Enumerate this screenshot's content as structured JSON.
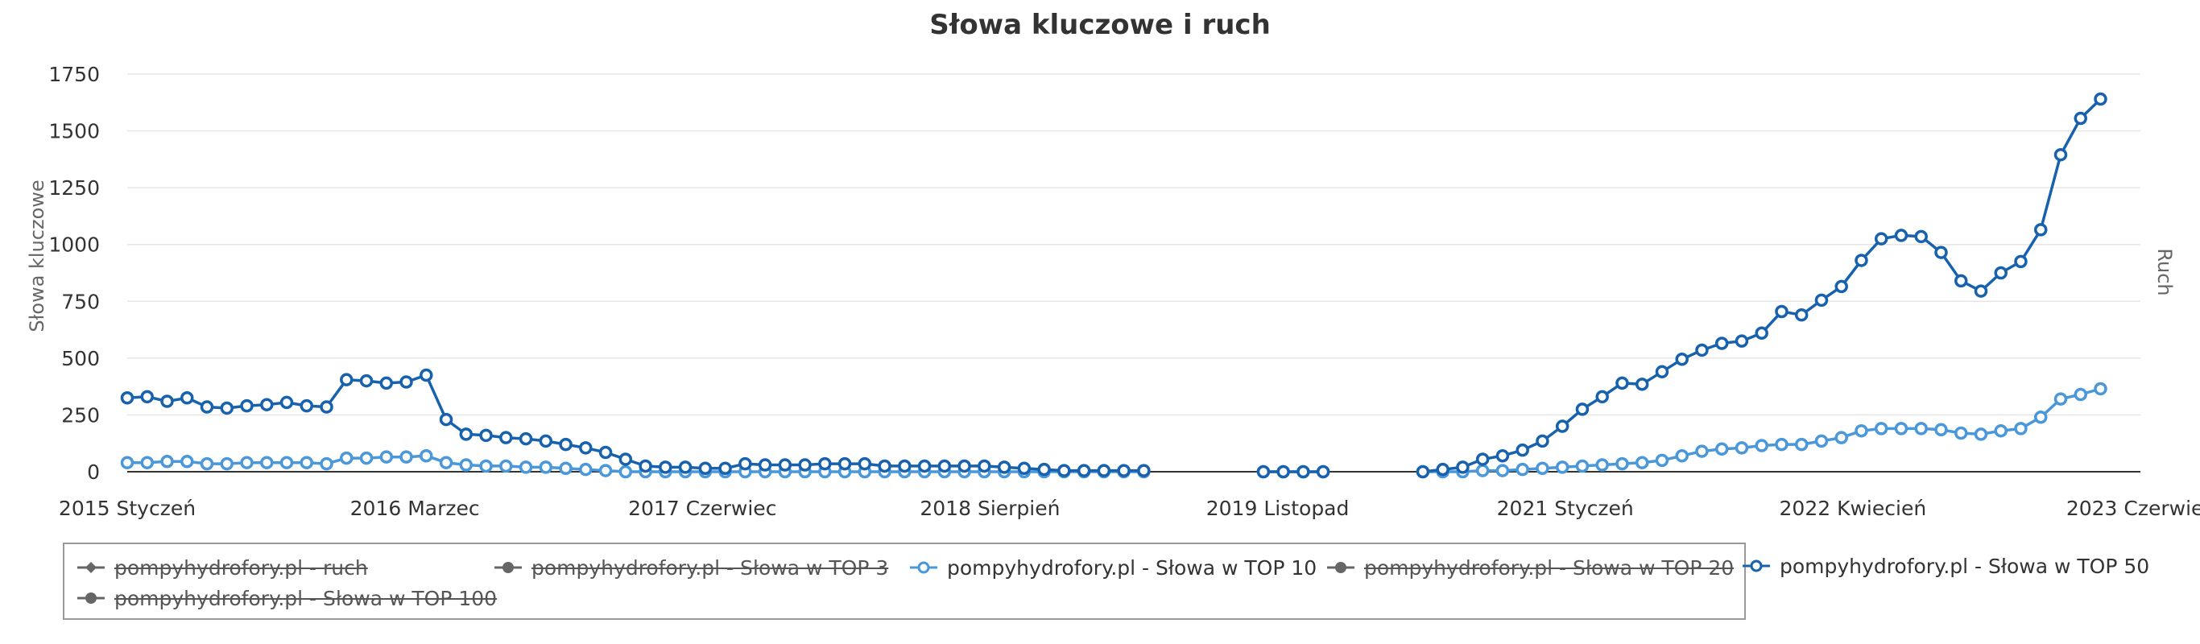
{
  "chart_data": {
    "type": "line",
    "title": "Słowa kluczowe i ruch",
    "ylabel": "Słowa kluczowe",
    "y2label": "Ruch",
    "ylim": [
      0,
      1750
    ],
    "yticks": [
      0,
      250,
      500,
      750,
      1000,
      1250,
      1500,
      1750
    ],
    "x_labels": [
      "2015 Styczeń",
      "2016 Marzec",
      "2017 Czerwiec",
      "2018 Sierpień",
      "2019 Listopad",
      "2021 Styczeń",
      "2022 Kwiecień",
      "2023 Czerwiec"
    ],
    "x_start": "2015-01",
    "x_end": "2023-06",
    "grid": true,
    "legend_position": "bottom",
    "series": [
      {
        "name": "pompyhydrofory.pl - Słowa w TOP 10",
        "color": "#4a97d9",
        "visible": true,
        "points": [
          [
            "2015-01",
            40
          ],
          [
            "2015-02",
            40
          ],
          [
            "2015-03",
            45
          ],
          [
            "2015-04",
            45
          ],
          [
            "2015-05",
            35
          ],
          [
            "2015-06",
            35
          ],
          [
            "2015-07",
            40
          ],
          [
            "2015-08",
            40
          ],
          [
            "2015-09",
            40
          ],
          [
            "2015-10",
            40
          ],
          [
            "2015-11",
            35
          ],
          [
            "2015-12",
            60
          ],
          [
            "2016-01",
            60
          ],
          [
            "2016-02",
            65
          ],
          [
            "2016-03",
            65
          ],
          [
            "2016-04",
            70
          ],
          [
            "2016-05",
            40
          ],
          [
            "2016-06",
            30
          ],
          [
            "2016-07",
            25
          ],
          [
            "2016-08",
            25
          ],
          [
            "2016-09",
            20
          ],
          [
            "2016-10",
            20
          ],
          [
            "2016-11",
            15
          ],
          [
            "2016-12",
            10
          ],
          [
            "2017-01",
            5
          ],
          [
            "2017-02",
            0
          ],
          [
            "2017-03",
            0
          ],
          [
            "2017-04",
            0
          ],
          [
            "2017-05",
            0
          ],
          [
            "2017-06",
            0
          ],
          [
            "2017-07",
            0
          ],
          [
            "2017-08",
            0
          ],
          [
            "2017-09",
            0
          ],
          [
            "2017-10",
            0
          ],
          [
            "2017-11",
            0
          ],
          [
            "2017-12",
            0
          ],
          [
            "2018-01",
            0
          ],
          [
            "2018-02",
            0
          ],
          [
            "2018-03",
            0
          ],
          [
            "2018-04",
            0
          ],
          [
            "2018-05",
            0
          ],
          [
            "2018-06",
            0
          ],
          [
            "2018-07",
            0
          ],
          [
            "2018-08",
            0
          ],
          [
            "2018-09",
            0
          ],
          [
            "2018-10",
            0
          ],
          [
            "2018-11",
            0
          ],
          [
            "2018-12",
            0
          ],
          [
            "2019-01",
            0
          ],
          [
            "2019-02",
            0
          ],
          [
            "2019-03",
            0
          ],
          [
            "2019-04",
            0
          ],
          [
            "2019-10",
            0
          ],
          [
            "2019-11",
            0
          ],
          [
            "2019-12",
            0
          ],
          [
            "2020-01",
            0
          ],
          [
            "2020-06",
            0
          ],
          [
            "2020-07",
            0
          ],
          [
            "2020-08",
            0
          ],
          [
            "2020-09",
            5
          ],
          [
            "2020-10",
            5
          ],
          [
            "2020-11",
            10
          ],
          [
            "2020-12",
            15
          ],
          [
            "2021-01",
            20
          ],
          [
            "2021-02",
            25
          ],
          [
            "2021-03",
            30
          ],
          [
            "2021-04",
            35
          ],
          [
            "2021-05",
            40
          ],
          [
            "2021-06",
            50
          ],
          [
            "2021-07",
            70
          ],
          [
            "2021-08",
            90
          ],
          [
            "2021-09",
            100
          ],
          [
            "2021-10",
            105
          ],
          [
            "2021-11",
            115
          ],
          [
            "2021-12",
            120
          ],
          [
            "2022-01",
            120
          ],
          [
            "2022-02",
            135
          ],
          [
            "2022-03",
            150
          ],
          [
            "2022-04",
            180
          ],
          [
            "2022-05",
            190
          ],
          [
            "2022-06",
            190
          ],
          [
            "2022-07",
            190
          ],
          [
            "2022-08",
            185
          ],
          [
            "2022-09",
            170
          ],
          [
            "2022-10",
            165
          ],
          [
            "2022-11",
            180
          ],
          [
            "2022-12",
            190
          ],
          [
            "2023-01",
            240
          ],
          [
            "2023-02",
            320
          ],
          [
            "2023-03",
            340
          ],
          [
            "2023-04",
            365
          ]
        ]
      },
      {
        "name": "pompyhydrofory.pl - Słowa w TOP 50",
        "color": "#1862ad",
        "visible": true,
        "points": [
          [
            "2015-01",
            325
          ],
          [
            "2015-02",
            330
          ],
          [
            "2015-03",
            310
          ],
          [
            "2015-04",
            325
          ],
          [
            "2015-05",
            285
          ],
          [
            "2015-06",
            280
          ],
          [
            "2015-07",
            290
          ],
          [
            "2015-08",
            295
          ],
          [
            "2015-09",
            305
          ],
          [
            "2015-10",
            290
          ],
          [
            "2015-11",
            285
          ],
          [
            "2015-12",
            405
          ],
          [
            "2016-01",
            400
          ],
          [
            "2016-02",
            390
          ],
          [
            "2016-03",
            395
          ],
          [
            "2016-04",
            425
          ],
          [
            "2016-05",
            230
          ],
          [
            "2016-06",
            165
          ],
          [
            "2016-07",
            160
          ],
          [
            "2016-08",
            150
          ],
          [
            "2016-09",
            145
          ],
          [
            "2016-10",
            135
          ],
          [
            "2016-11",
            120
          ],
          [
            "2016-12",
            105
          ],
          [
            "2017-01",
            85
          ],
          [
            "2017-02",
            55
          ],
          [
            "2017-03",
            25
          ],
          [
            "2017-04",
            20
          ],
          [
            "2017-05",
            20
          ],
          [
            "2017-06",
            15
          ],
          [
            "2017-07",
            15
          ],
          [
            "2017-08",
            35
          ],
          [
            "2017-09",
            30
          ],
          [
            "2017-10",
            30
          ],
          [
            "2017-11",
            30
          ],
          [
            "2017-12",
            35
          ],
          [
            "2018-01",
            35
          ],
          [
            "2018-02",
            35
          ],
          [
            "2018-03",
            25
          ],
          [
            "2018-04",
            25
          ],
          [
            "2018-05",
            25
          ],
          [
            "2018-06",
            25
          ],
          [
            "2018-07",
            25
          ],
          [
            "2018-08",
            25
          ],
          [
            "2018-09",
            20
          ],
          [
            "2018-10",
            15
          ],
          [
            "2018-11",
            10
          ],
          [
            "2018-12",
            5
          ],
          [
            "2019-01",
            5
          ],
          [
            "2019-02",
            5
          ],
          [
            "2019-03",
            5
          ],
          [
            "2019-04",
            5
          ],
          [
            "2019-10",
            0
          ],
          [
            "2019-11",
            0
          ],
          [
            "2019-12",
            0
          ],
          [
            "2020-01",
            0
          ],
          [
            "2020-06",
            0
          ],
          [
            "2020-07",
            10
          ],
          [
            "2020-08",
            20
          ],
          [
            "2020-09",
            55
          ],
          [
            "2020-10",
            70
          ],
          [
            "2020-11",
            95
          ],
          [
            "2020-12",
            135
          ],
          [
            "2021-01",
            200
          ],
          [
            "2021-02",
            275
          ],
          [
            "2021-03",
            330
          ],
          [
            "2021-04",
            390
          ],
          [
            "2021-05",
            385
          ],
          [
            "2021-06",
            440
          ],
          [
            "2021-07",
            495
          ],
          [
            "2021-08",
            535
          ],
          [
            "2021-09",
            565
          ],
          [
            "2021-10",
            575
          ],
          [
            "2021-11",
            610
          ],
          [
            "2021-12",
            705
          ],
          [
            "2022-01",
            690
          ],
          [
            "2022-02",
            755
          ],
          [
            "2022-03",
            815
          ],
          [
            "2022-04",
            930
          ],
          [
            "2022-05",
            1025
          ],
          [
            "2022-06",
            1040
          ],
          [
            "2022-07",
            1035
          ],
          [
            "2022-08",
            965
          ],
          [
            "2022-09",
            840
          ],
          [
            "2022-10",
            795
          ],
          [
            "2022-11",
            875
          ],
          [
            "2022-12",
            925
          ],
          [
            "2023-01",
            1065
          ],
          [
            "2023-02",
            1395
          ],
          [
            "2023-03",
            1555
          ],
          [
            "2023-04",
            1640
          ]
        ]
      }
    ],
    "legend": [
      {
        "label": "pompyhydrofory.pl - ruch",
        "color": "#666666",
        "symbol": "diamond",
        "visible": false
      },
      {
        "label": "pompyhydrofory.pl - Słowa w TOP 3",
        "color": "#666666",
        "symbol": "circle",
        "visible": false
      },
      {
        "label": "pompyhydrofory.pl - Słowa w TOP 10",
        "color": "#4a97d9",
        "symbol": "circle",
        "visible": true
      },
      {
        "label": "pompyhydrofory.pl - Słowa w TOP 20",
        "color": "#666666",
        "symbol": "circle",
        "visible": false
      },
      {
        "label": "pompyhydrofory.pl - Słowa w TOP 50",
        "color": "#1862ad",
        "symbol": "circle",
        "visible": true
      },
      {
        "label": "pompyhydrofory.pl - Słowa w TOP 100",
        "color": "#666666",
        "symbol": "circle",
        "visible": false
      }
    ]
  }
}
